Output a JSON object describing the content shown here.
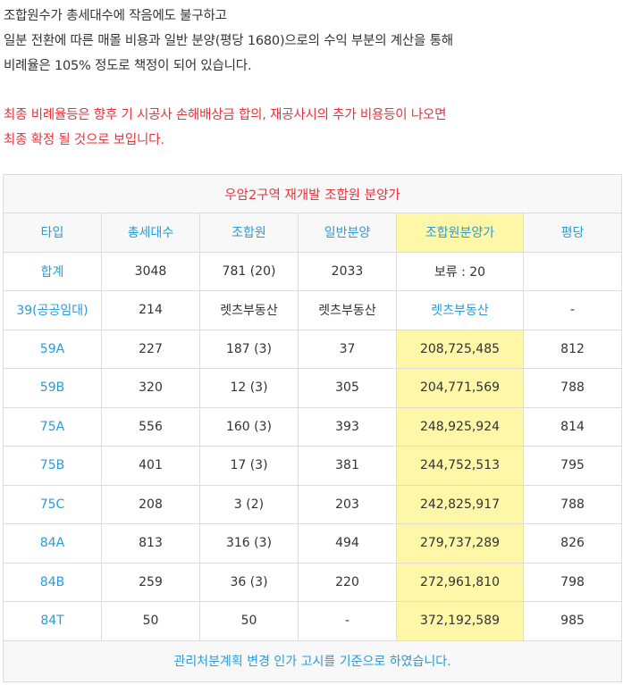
{
  "intro": {
    "lines": [
      "조합원수가 총세대수에 작음에도 불구하고",
      "일분 전환에 따른 매몰 비용과 일반 분양(평당 1680)으로의 수익 부분의 계산을 통해",
      "비례율은 105% 정도로 책정이 되어 있습니다."
    ],
    "warning_lines": [
      "최종 비례율등은 향후 기 시공사 손해배상금 합의, 재공사시의 추가 비용등이 나오면",
      "최종 확정 될 것으로 보입니다."
    ]
  },
  "table": {
    "title": "우암2구역 재개발 조합원 분양가",
    "headers": [
      "타입",
      "총세대수",
      "조합원",
      "일반분양",
      "조합원분양가",
      "평당"
    ],
    "rows": [
      {
        "type": "합계",
        "total": "3048",
        "member": "781 (20)",
        "general": "2033",
        "price": "보류 : 20",
        "per_pyeong": ""
      },
      {
        "type": "39(공공임대)",
        "total": "214",
        "member": "렛츠부동산",
        "general": "렛츠부동산",
        "price": "렛츠부동산",
        "per_pyeong": "-"
      },
      {
        "type": "59A",
        "total": "227",
        "member": "187 (3)",
        "general": "37",
        "price": "208,725,485",
        "per_pyeong": "812"
      },
      {
        "type": "59B",
        "total": "320",
        "member": "12 (3)",
        "general": "305",
        "price": "204,771,569",
        "per_pyeong": "788"
      },
      {
        "type": "75A",
        "total": "556",
        "member": "160 (3)",
        "general": "393",
        "price": "248,925,924",
        "per_pyeong": "814"
      },
      {
        "type": "75B",
        "total": "401",
        "member": "17 (3)",
        "general": "381",
        "price": "244,752,513",
        "per_pyeong": "795"
      },
      {
        "type": "75C",
        "total": "208",
        "member": "3 (2)",
        "general": "203",
        "price": "242,825,917",
        "per_pyeong": "788"
      },
      {
        "type": "84A",
        "total": "813",
        "member": "316 (3)",
        "general": "494",
        "price": "279,737,289",
        "per_pyeong": "826"
      },
      {
        "type": "84B",
        "total": "259",
        "member": "36 (3)",
        "general": "220",
        "price": "272,961,810",
        "per_pyeong": "798"
      },
      {
        "type": "84T",
        "total": "50",
        "member": "50",
        "general": "-",
        "price": "372,192,589",
        "per_pyeong": "985"
      }
    ],
    "footer": "관리처분계획 변경 인가 고시를 기준으로 하였습니다."
  },
  "colors": {
    "accent_blue": "#2a9bd7",
    "warning_red": "#e8333b",
    "highlight_yellow": "#fdf7a7",
    "header_bg": "#f8f8f8"
  }
}
